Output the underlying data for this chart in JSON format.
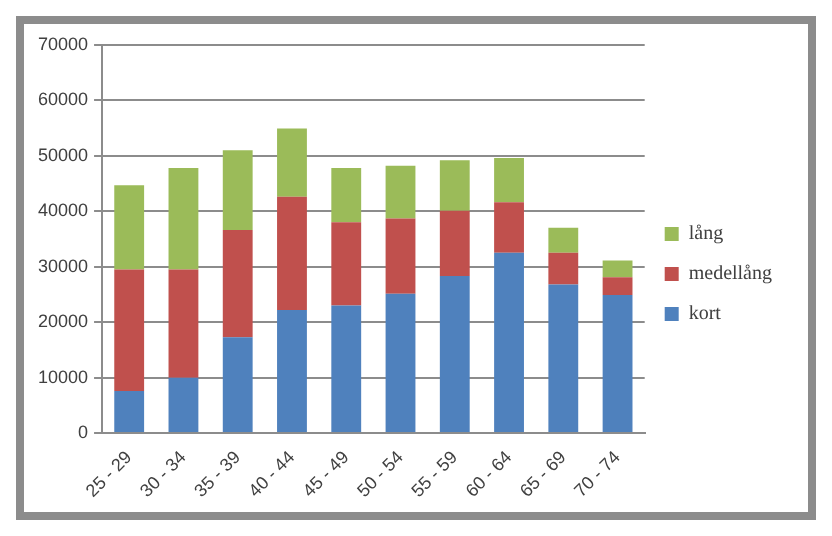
{
  "chart_data": {
    "type": "bar",
    "stacked": true,
    "categories": [
      "25 - 29",
      "30 - 34",
      "35 - 39",
      "40 - 44",
      "45 - 49",
      "50 - 54",
      "55 - 59",
      "60 - 64",
      "65 - 69",
      "70 - 74"
    ],
    "series": [
      {
        "name": "kort",
        "color": "#4f81bd",
        "values": [
          7600,
          10000,
          17300,
          22200,
          23000,
          25100,
          28300,
          32500,
          26800,
          24900
        ]
      },
      {
        "name": "medellång",
        "color": "#c0504d",
        "values": [
          21900,
          19500,
          19300,
          20400,
          15000,
          13600,
          11800,
          9100,
          5700,
          3200
        ]
      },
      {
        "name": "lång",
        "color": "#9bbb59",
        "values": [
          15200,
          18300,
          14400,
          12300,
          9800,
          9500,
          9100,
          8000,
          4500,
          3000
        ]
      }
    ],
    "ylim": [
      0,
      70000
    ],
    "yticks": [
      0,
      10000,
      20000,
      30000,
      40000,
      50000,
      60000,
      70000
    ],
    "grid": "y",
    "legend": "right"
  }
}
